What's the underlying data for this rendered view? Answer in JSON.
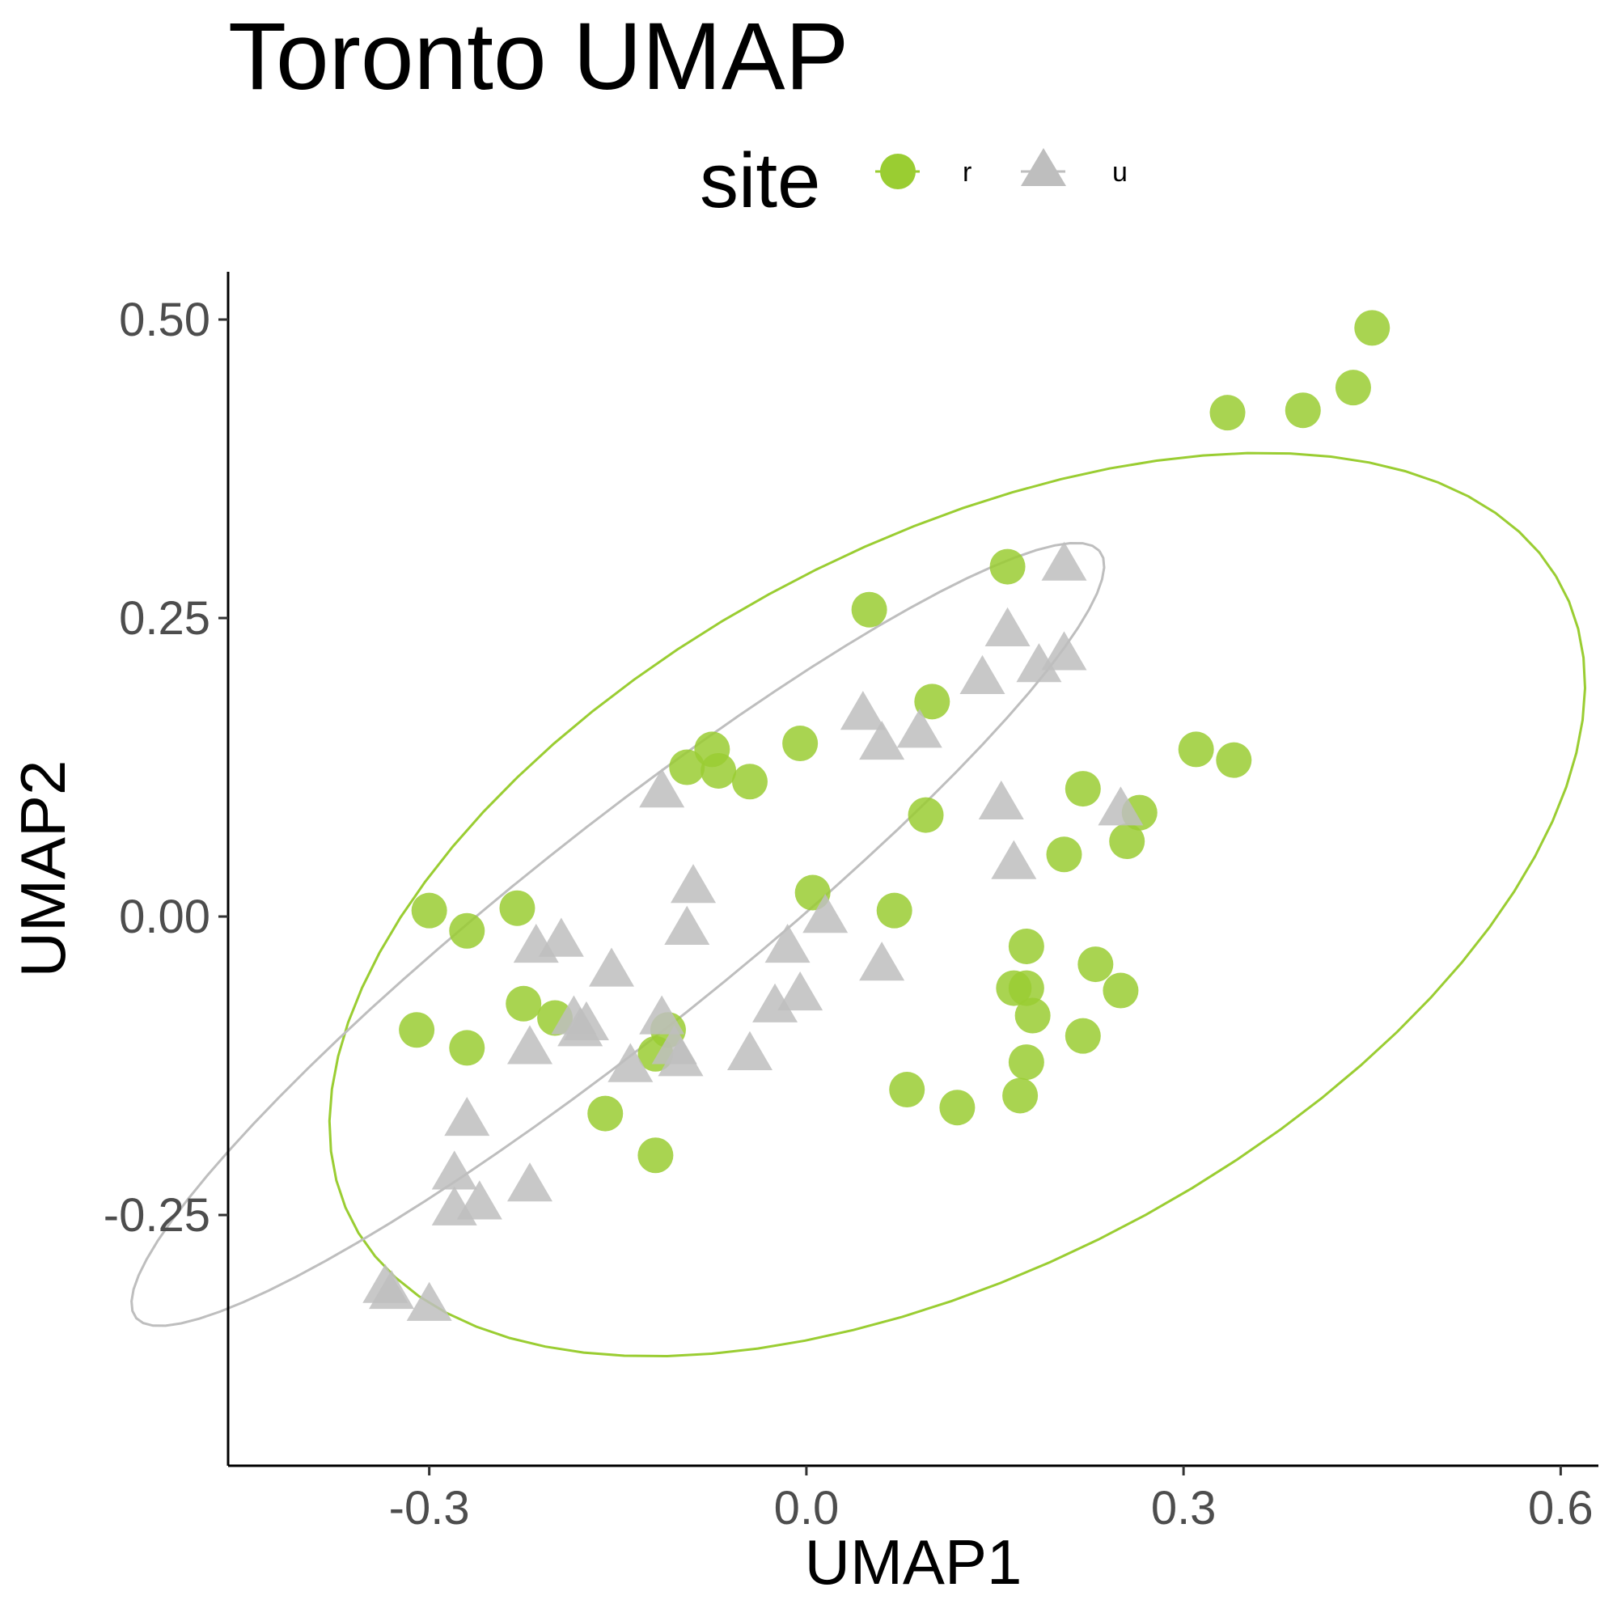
{
  "chart_data": {
    "type": "scatter",
    "title": "Toronto UMAP",
    "xlabel": "UMAP1",
    "ylabel": "UMAP2",
    "xlim": [
      -0.46,
      0.63
    ],
    "ylim": [
      -0.46,
      0.54
    ],
    "xticks": [
      -0.3,
      0.0,
      0.3,
      0.6
    ],
    "xtick_labels": [
      "-0.3",
      "0.0",
      "0.3",
      "0.6"
    ],
    "yticks": [
      -0.25,
      0.0,
      0.25,
      0.5
    ],
    "ytick_labels": [
      "-0.25",
      "0.00",
      "0.25",
      "0.50"
    ],
    "grid": false,
    "legend": {
      "title": "site",
      "position": "top",
      "entries": [
        "r",
        "u"
      ]
    },
    "series": [
      {
        "name": "r",
        "shape": "circle",
        "color": "#9acd32",
        "ellipse": {
          "center": [
            0.12,
            0.01
          ],
          "semi_axes": [
            0.55,
            0.3
          ],
          "rotation_deg": 30
        },
        "points": [
          [
            -0.3,
            0.005
          ],
          [
            -0.27,
            -0.012
          ],
          [
            -0.23,
            0.007
          ],
          [
            -0.31,
            -0.095
          ],
          [
            -0.27,
            -0.11
          ],
          [
            -0.225,
            -0.073
          ],
          [
            -0.2,
            -0.085
          ],
          [
            -0.16,
            -0.165
          ],
          [
            -0.095,
            0.125
          ],
          [
            -0.075,
            0.14
          ],
          [
            -0.11,
            -0.095
          ],
          [
            -0.07,
            0.122
          ],
          [
            -0.045,
            0.113
          ],
          [
            -0.005,
            0.145
          ],
          [
            0.005,
            0.02
          ],
          [
            0.05,
            0.257
          ],
          [
            0.07,
            0.005
          ],
          [
            0.1,
            0.18
          ],
          [
            0.095,
            0.085
          ],
          [
            0.08,
            -0.145
          ],
          [
            0.12,
            -0.16
          ],
          [
            0.16,
            0.293
          ],
          [
            0.165,
            -0.06
          ],
          [
            0.175,
            -0.025
          ],
          [
            0.175,
            -0.06
          ],
          [
            0.18,
            -0.083
          ],
          [
            0.175,
            -0.122
          ],
          [
            0.17,
            -0.15
          ],
          [
            0.205,
            0.052
          ],
          [
            0.22,
            0.107
          ],
          [
            0.23,
            -0.04
          ],
          [
            0.22,
            -0.1
          ],
          [
            0.255,
            0.063
          ],
          [
            0.265,
            0.087
          ],
          [
            0.25,
            -0.062
          ],
          [
            0.31,
            0.14
          ],
          [
            0.34,
            0.131
          ],
          [
            0.335,
            0.422
          ],
          [
            0.395,
            0.424
          ],
          [
            0.435,
            0.443
          ],
          [
            0.45,
            0.493
          ],
          [
            -0.12,
            -0.115
          ],
          [
            -0.12,
            -0.2
          ]
        ]
      },
      {
        "name": "u",
        "shape": "triangle",
        "color": "#bebebe",
        "ellipse": {
          "center": [
            -0.15,
            -0.015
          ],
          "semi_axes": [
            0.5,
            0.085
          ],
          "rotation_deg": 40
        },
        "points": [
          [
            -0.33,
            -0.315
          ],
          [
            -0.335,
            -0.31
          ],
          [
            -0.3,
            -0.325
          ],
          [
            -0.27,
            -0.17
          ],
          [
            -0.28,
            -0.215
          ],
          [
            -0.28,
            -0.245
          ],
          [
            -0.26,
            -0.24
          ],
          [
            -0.22,
            -0.225
          ],
          [
            -0.22,
            -0.11
          ],
          [
            -0.215,
            -0.025
          ],
          [
            -0.195,
            -0.02
          ],
          [
            -0.185,
            -0.085
          ],
          [
            -0.18,
            -0.095
          ],
          [
            -0.175,
            -0.09
          ],
          [
            -0.155,
            -0.045
          ],
          [
            -0.14,
            -0.125
          ],
          [
            -0.115,
            0.105
          ],
          [
            -0.115,
            -0.085
          ],
          [
            -0.1,
            -0.12
          ],
          [
            -0.105,
            -0.11
          ],
          [
            -0.095,
            -0.01
          ],
          [
            -0.09,
            0.025
          ],
          [
            -0.045,
            -0.115
          ],
          [
            -0.025,
            -0.075
          ],
          [
            -0.015,
            -0.025
          ],
          [
            -0.005,
            -0.065
          ],
          [
            0.015,
            0.0
          ],
          [
            0.045,
            0.17
          ],
          [
            0.06,
            0.145
          ],
          [
            0.06,
            -0.04
          ],
          [
            0.09,
            0.155
          ],
          [
            0.14,
            0.2
          ],
          [
            0.155,
            0.095
          ],
          [
            0.165,
            0.045
          ],
          [
            0.16,
            0.24
          ],
          [
            0.185,
            0.21
          ],
          [
            0.205,
            0.295
          ],
          [
            0.205,
            0.22
          ],
          [
            0.25,
            0.09
          ]
        ]
      }
    ]
  }
}
